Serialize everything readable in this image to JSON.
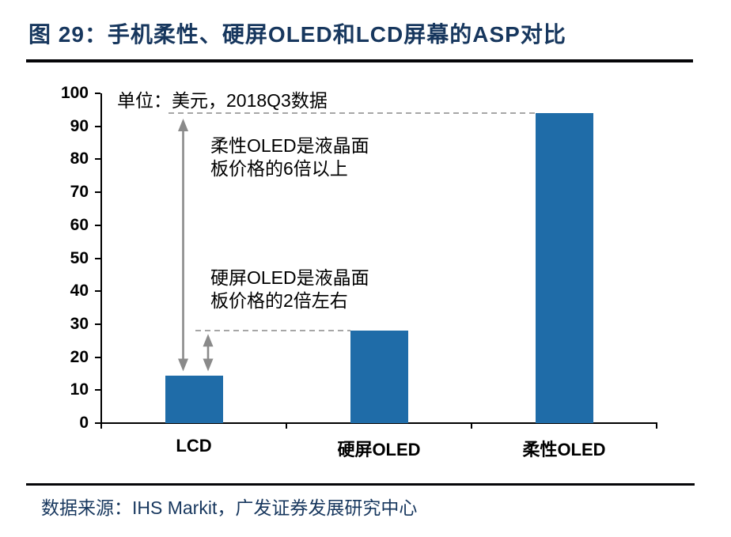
{
  "header": {
    "title": "图 29：手机柔性、硬屏OLED和LCD屏幕的ASP对比"
  },
  "chart_data": {
    "type": "bar",
    "title": "手机柔性、硬屏OLED和LCD屏幕的ASP对比",
    "unit_note": "单位：美元，2018Q3数据",
    "categories": [
      "LCD",
      "硬屏OLED",
      "柔性OLED"
    ],
    "values": [
      14.5,
      28,
      94
    ],
    "xlabel": "",
    "ylabel": "",
    "ylim": [
      0,
      100
    ],
    "ytick_step": 10,
    "grid": false,
    "legend": false,
    "reference_lines": [
      {
        "value": 94,
        "style": "dashed"
      },
      {
        "value": 28,
        "style": "dashed"
      }
    ],
    "annotations": [
      {
        "text": "柔性OLED是液晶面板价格的6倍以上",
        "lines": [
          "柔性OLED是液晶面",
          "板价格的6倍以上"
        ]
      },
      {
        "text": "硬屏OLED是液晶面板价格的2倍左右",
        "lines": [
          "硬屏OLED是液晶面",
          "板价格的2倍左右"
        ]
      }
    ]
  },
  "footer": {
    "source": "数据来源：IHS Markit，广发证券发展研究中心"
  },
  "colors": {
    "bar": "#1F6CA8",
    "title_text": "#17375E",
    "source_text": "#17375E",
    "rule": "#050508",
    "axis": "#000000",
    "dash_line": "#A6A6A6",
    "arrow": "#8A8A8A"
  }
}
